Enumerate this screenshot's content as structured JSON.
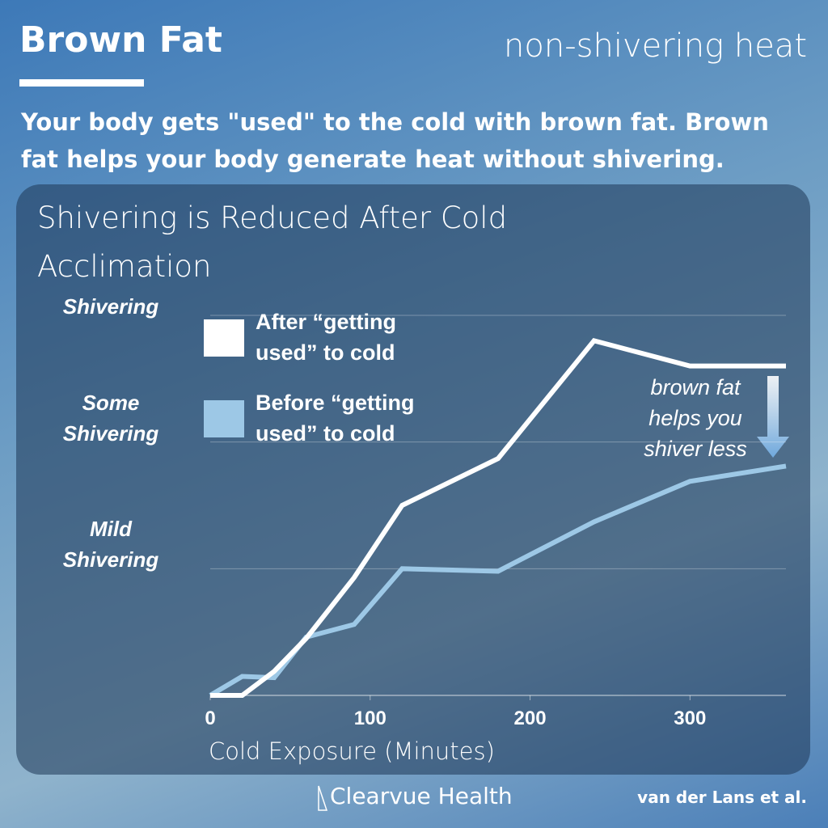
{
  "header": {
    "title": "Brown Fat",
    "subtitle": "non-shivering heat",
    "description": "Your body gets \"used\" to the cold with brown fat. Brown fat helps your body generate heat without shivering."
  },
  "chart_data": {
    "type": "line",
    "title": "Shivering is Reduced After Cold Acclimation",
    "x_label": "Cold Exposure (Minutes)",
    "x": [
      0,
      20,
      40,
      60,
      90,
      120,
      180,
      240,
      300,
      360
    ],
    "series": [
      {
        "name": "After “getting used” to cold",
        "color": "#ffffff",
        "values": [
          0,
          0,
          0.19,
          0.45,
          0.93,
          1.5,
          1.87,
          2.8,
          2.6,
          2.6
        ]
      },
      {
        "name": "Before “getting used” to cold",
        "color": "#9dc8e6",
        "values": [
          0,
          0.15,
          0.14,
          0.46,
          0.56,
          1.0,
          0.98,
          1.37,
          1.69,
          1.81
        ]
      }
    ],
    "xlim": [
      0,
      360
    ],
    "xticks": [
      0,
      100,
      200,
      300
    ],
    "ylim": [
      0,
      3
    ],
    "yticks": [
      {
        "value": 1,
        "label": "Mild Shivering"
      },
      {
        "value": 2,
        "label": "Some Shivering"
      },
      {
        "value": 3,
        "label": "Shivering"
      }
    ],
    "grid": true,
    "annotation": "brown fat helps you shiver less"
  },
  "footer": {
    "brand": "Clearvue Health",
    "citation": "van der Lans et al."
  }
}
